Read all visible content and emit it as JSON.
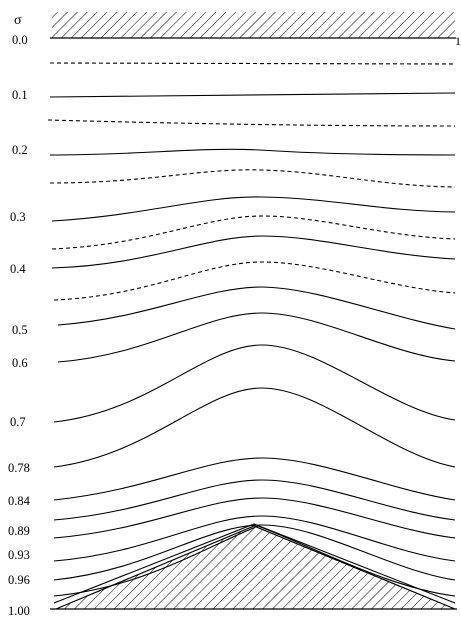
{
  "figure": {
    "axis_symbol": "σ",
    "right_edge_label": "1",
    "tick_labels": [
      "0.0",
      "0.1",
      "0.2",
      "0.3",
      "0.4",
      "0.5",
      "0.6",
      "0.7",
      "0.78",
      "0.84",
      "0.89",
      "0.93",
      "0.96",
      "1.00"
    ],
    "line_styles": {
      "solid": "model σ-levels",
      "dashed": "intermediate σ-levels"
    },
    "hatch_color": "#000000",
    "line_color": "#000000"
  }
}
